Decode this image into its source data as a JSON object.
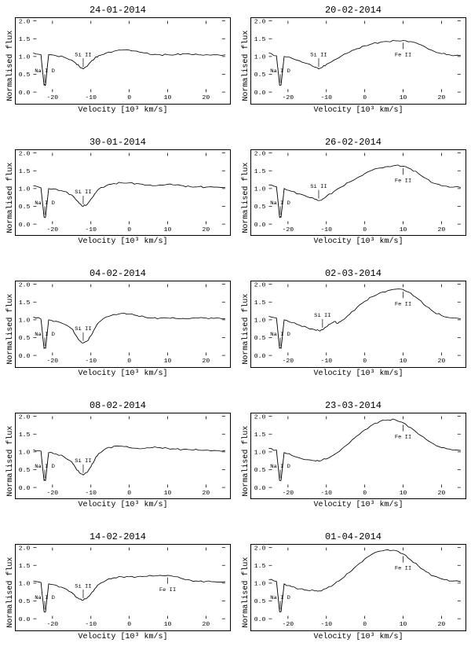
{
  "figure": {
    "grid_rows": 5,
    "grid_cols": 2,
    "background_color": "#ffffff",
    "line_color": "#000000",
    "text_color": "#000000",
    "title_fontsize": 12,
    "label_fontsize": 10,
    "ylabel": "Normalised flux",
    "xlabel": "Velocity [10³ km/s]",
    "xlim": [
      -25,
      25
    ],
    "ylim": [
      0.0,
      2.0
    ],
    "xticks": [
      -20,
      -10,
      0,
      10,
      20
    ],
    "yticks": [
      0.0,
      0.5,
      1.0,
      1.5,
      2.0
    ],
    "marker_labels": {
      "na": "Na I D",
      "si": "Si II",
      "fe": "Fe II"
    },
    "panels": [
      {
        "title": "24-01-2014",
        "na_x": -22,
        "si_x": -12,
        "fe_x": null,
        "spectrum": [
          [
            -25,
            1.1
          ],
          [
            -23,
            1.05
          ],
          [
            -22.2,
            0.2
          ],
          [
            -21.8,
            0.2
          ],
          [
            -21,
            1.05
          ],
          [
            -19,
            1.02
          ],
          [
            -17,
            0.98
          ],
          [
            -15,
            0.9
          ],
          [
            -14,
            0.82
          ],
          [
            -13,
            0.72
          ],
          [
            -12,
            0.65
          ],
          [
            -11,
            0.72
          ],
          [
            -10,
            0.85
          ],
          [
            -9,
            0.95
          ],
          [
            -8,
            1.02
          ],
          [
            -6,
            1.1
          ],
          [
            -4,
            1.15
          ],
          [
            -2,
            1.18
          ],
          [
            0,
            1.18
          ],
          [
            2,
            1.15
          ],
          [
            4,
            1.1
          ],
          [
            6,
            1.05
          ],
          [
            8,
            1.05
          ],
          [
            10,
            1.05
          ],
          [
            12,
            1.05
          ],
          [
            14,
            1.08
          ],
          [
            16,
            1.06
          ],
          [
            18,
            1.05
          ],
          [
            20,
            1.05
          ],
          [
            22,
            1.05
          ],
          [
            25,
            1.05
          ]
        ]
      },
      {
        "title": "20-02-2014",
        "na_x": -22,
        "si_x": -12,
        "fe_x": 10,
        "spectrum": [
          [
            -25,
            1.1
          ],
          [
            -23,
            1.02
          ],
          [
            -22.2,
            0.2
          ],
          [
            -21.8,
            0.2
          ],
          [
            -21,
            1.0
          ],
          [
            -19,
            0.95
          ],
          [
            -17,
            0.88
          ],
          [
            -15,
            0.8
          ],
          [
            -13,
            0.7
          ],
          [
            -12,
            0.65
          ],
          [
            -11,
            0.7
          ],
          [
            -10,
            0.78
          ],
          [
            -8,
            0.9
          ],
          [
            -6,
            1.02
          ],
          [
            -4,
            1.12
          ],
          [
            -2,
            1.22
          ],
          [
            0,
            1.3
          ],
          [
            2,
            1.36
          ],
          [
            4,
            1.4
          ],
          [
            6,
            1.42
          ],
          [
            8,
            1.44
          ],
          [
            10,
            1.45
          ],
          [
            12,
            1.42
          ],
          [
            14,
            1.35
          ],
          [
            16,
            1.25
          ],
          [
            18,
            1.15
          ],
          [
            20,
            1.08
          ],
          [
            22,
            1.05
          ],
          [
            25,
            1.03
          ]
        ]
      },
      {
        "title": "30-01-2014",
        "na_x": -22,
        "si_x": -12,
        "fe_x": null,
        "spectrum": [
          [
            -25,
            1.08
          ],
          [
            -23,
            1.02
          ],
          [
            -22.2,
            0.2
          ],
          [
            -21.8,
            0.2
          ],
          [
            -21,
            1.0
          ],
          [
            -19,
            0.98
          ],
          [
            -17,
            0.92
          ],
          [
            -15,
            0.82
          ],
          [
            -14,
            0.7
          ],
          [
            -13,
            0.58
          ],
          [
            -12,
            0.5
          ],
          [
            -11,
            0.55
          ],
          [
            -10,
            0.7
          ],
          [
            -9,
            0.85
          ],
          [
            -8,
            0.98
          ],
          [
            -6,
            1.08
          ],
          [
            -4,
            1.14
          ],
          [
            -2,
            1.16
          ],
          [
            0,
            1.16
          ],
          [
            2,
            1.14
          ],
          [
            4,
            1.1
          ],
          [
            6,
            1.08
          ],
          [
            8,
            1.1
          ],
          [
            10,
            1.12
          ],
          [
            12,
            1.1
          ],
          [
            14,
            1.08
          ],
          [
            16,
            1.05
          ],
          [
            18,
            1.05
          ],
          [
            20,
            1.04
          ],
          [
            22,
            1.04
          ],
          [
            25,
            1.03
          ]
        ]
      },
      {
        "title": "26-02-2014",
        "na_x": -22,
        "si_x": -12,
        "fe_x": 10,
        "spectrum": [
          [
            -25,
            1.1
          ],
          [
            -23,
            1.05
          ],
          [
            -22.2,
            0.2
          ],
          [
            -21.8,
            0.2
          ],
          [
            -21,
            1.0
          ],
          [
            -19,
            0.92
          ],
          [
            -17,
            0.85
          ],
          [
            -15,
            0.77
          ],
          [
            -13,
            0.7
          ],
          [
            -12,
            0.66
          ],
          [
            -11,
            0.7
          ],
          [
            -10,
            0.78
          ],
          [
            -8,
            0.92
          ],
          [
            -6,
            1.05
          ],
          [
            -4,
            1.18
          ],
          [
            -2,
            1.3
          ],
          [
            0,
            1.42
          ],
          [
            2,
            1.52
          ],
          [
            4,
            1.58
          ],
          [
            6,
            1.62
          ],
          [
            8,
            1.65
          ],
          [
            10,
            1.63
          ],
          [
            12,
            1.55
          ],
          [
            14,
            1.42
          ],
          [
            16,
            1.28
          ],
          [
            18,
            1.15
          ],
          [
            20,
            1.08
          ],
          [
            22,
            1.04
          ],
          [
            25,
            1.03
          ]
        ]
      },
      {
        "title": "04-02-2014",
        "na_x": -22,
        "si_x": -12,
        "fe_x": null,
        "spectrum": [
          [
            -25,
            1.08
          ],
          [
            -23,
            1.02
          ],
          [
            -22.2,
            0.2
          ],
          [
            -21.8,
            0.2
          ],
          [
            -21,
            1.0
          ],
          [
            -19,
            0.96
          ],
          [
            -17,
            0.88
          ],
          [
            -15,
            0.75
          ],
          [
            -14,
            0.58
          ],
          [
            -13,
            0.42
          ],
          [
            -12,
            0.35
          ],
          [
            -11,
            0.4
          ],
          [
            -10,
            0.55
          ],
          [
            -9,
            0.75
          ],
          [
            -8,
            0.92
          ],
          [
            -6,
            1.08
          ],
          [
            -4,
            1.15
          ],
          [
            -2,
            1.18
          ],
          [
            0,
            1.16
          ],
          [
            2,
            1.12
          ],
          [
            4,
            1.08
          ],
          [
            6,
            1.05
          ],
          [
            8,
            1.05
          ],
          [
            10,
            1.05
          ],
          [
            12,
            1.04
          ],
          [
            14,
            1.04
          ],
          [
            16,
            1.04
          ],
          [
            18,
            1.05
          ],
          [
            20,
            1.05
          ],
          [
            22,
            1.04
          ],
          [
            25,
            1.03
          ]
        ]
      },
      {
        "title": "02-03-2014",
        "na_x": -22,
        "si_x": -11,
        "fe_x": 10,
        "spectrum": [
          [
            -25,
            1.1
          ],
          [
            -23,
            1.05
          ],
          [
            -22.2,
            0.2
          ],
          [
            -21.8,
            0.2
          ],
          [
            -21,
            1.0
          ],
          [
            -19,
            0.92
          ],
          [
            -17,
            0.85
          ],
          [
            -15,
            0.78
          ],
          [
            -13,
            0.72
          ],
          [
            -12,
            0.7
          ],
          [
            -11,
            0.72
          ],
          [
            -10,
            0.8
          ],
          [
            -9,
            0.88
          ],
          [
            -8,
            0.95
          ],
          [
            -7,
            0.9
          ],
          [
            -6,
            0.98
          ],
          [
            -4,
            1.15
          ],
          [
            -2,
            1.35
          ],
          [
            0,
            1.52
          ],
          [
            2,
            1.65
          ],
          [
            4,
            1.76
          ],
          [
            6,
            1.82
          ],
          [
            8,
            1.86
          ],
          [
            10,
            1.85
          ],
          [
            12,
            1.75
          ],
          [
            14,
            1.58
          ],
          [
            16,
            1.38
          ],
          [
            18,
            1.22
          ],
          [
            20,
            1.12
          ],
          [
            22,
            1.06
          ],
          [
            25,
            1.03
          ]
        ]
      },
      {
        "title": "08-02-2014",
        "na_x": -22,
        "si_x": -12,
        "fe_x": null,
        "spectrum": [
          [
            -25,
            1.06
          ],
          [
            -23,
            1.02
          ],
          [
            -22.2,
            0.2
          ],
          [
            -21.8,
            0.2
          ],
          [
            -21,
            0.98
          ],
          [
            -19,
            0.94
          ],
          [
            -17,
            0.86
          ],
          [
            -15,
            0.72
          ],
          [
            -14,
            0.56
          ],
          [
            -13,
            0.42
          ],
          [
            -12,
            0.35
          ],
          [
            -11,
            0.42
          ],
          [
            -10,
            0.58
          ],
          [
            -9,
            0.78
          ],
          [
            -8,
            0.95
          ],
          [
            -6,
            1.1
          ],
          [
            -4,
            1.16
          ],
          [
            -2,
            1.16
          ],
          [
            0,
            1.12
          ],
          [
            2,
            1.1
          ],
          [
            4,
            1.1
          ],
          [
            6,
            1.12
          ],
          [
            8,
            1.12
          ],
          [
            10,
            1.1
          ],
          [
            12,
            1.08
          ],
          [
            14,
            1.07
          ],
          [
            16,
            1.06
          ],
          [
            18,
            1.05
          ],
          [
            20,
            1.05
          ],
          [
            22,
            1.04
          ],
          [
            25,
            1.04
          ]
        ]
      },
      {
        "title": "23-03-2014",
        "na_x": -22,
        "si_x": null,
        "fe_x": 10,
        "spectrum": [
          [
            -25,
            1.1
          ],
          [
            -23,
            1.05
          ],
          [
            -22.2,
            0.2
          ],
          [
            -21.8,
            0.2
          ],
          [
            -21,
            0.98
          ],
          [
            -19,
            0.9
          ],
          [
            -17,
            0.83
          ],
          [
            -15,
            0.78
          ],
          [
            -13,
            0.75
          ],
          [
            -12,
            0.74
          ],
          [
            -10,
            0.8
          ],
          [
            -8,
            0.92
          ],
          [
            -6,
            1.08
          ],
          [
            -4,
            1.25
          ],
          [
            -2,
            1.45
          ],
          [
            0,
            1.62
          ],
          [
            2,
            1.76
          ],
          [
            4,
            1.86
          ],
          [
            6,
            1.9
          ],
          [
            8,
            1.9
          ],
          [
            10,
            1.82
          ],
          [
            12,
            1.68
          ],
          [
            14,
            1.5
          ],
          [
            16,
            1.35
          ],
          [
            18,
            1.22
          ],
          [
            20,
            1.12
          ],
          [
            22,
            1.08
          ],
          [
            25,
            1.04
          ]
        ]
      },
      {
        "title": "14-02-2014",
        "na_x": -22,
        "si_x": -12,
        "fe_x": 10,
        "spectrum": [
          [
            -25,
            1.06
          ],
          [
            -23,
            1.02
          ],
          [
            -22.2,
            0.2
          ],
          [
            -21.8,
            0.2
          ],
          [
            -21,
            0.98
          ],
          [
            -19,
            0.94
          ],
          [
            -17,
            0.86
          ],
          [
            -15,
            0.74
          ],
          [
            -14,
            0.62
          ],
          [
            -13,
            0.55
          ],
          [
            -12,
            0.52
          ],
          [
            -11,
            0.58
          ],
          [
            -10,
            0.7
          ],
          [
            -9,
            0.84
          ],
          [
            -8,
            0.96
          ],
          [
            -6,
            1.08
          ],
          [
            -4,
            1.15
          ],
          [
            -2,
            1.18
          ],
          [
            0,
            1.18
          ],
          [
            2,
            1.18
          ],
          [
            4,
            1.19
          ],
          [
            6,
            1.2
          ],
          [
            8,
            1.22
          ],
          [
            10,
            1.22
          ],
          [
            12,
            1.18
          ],
          [
            14,
            1.12
          ],
          [
            16,
            1.08
          ],
          [
            18,
            1.05
          ],
          [
            20,
            1.05
          ],
          [
            22,
            1.04
          ],
          [
            25,
            1.04
          ]
        ]
      },
      {
        "title": "01-04-2014",
        "na_x": -22,
        "si_x": null,
        "fe_x": 10,
        "spectrum": [
          [
            -25,
            1.1
          ],
          [
            -23,
            1.05
          ],
          [
            -22.2,
            0.2
          ],
          [
            -21.8,
            0.2
          ],
          [
            -21,
            0.98
          ],
          [
            -19,
            0.9
          ],
          [
            -17,
            0.84
          ],
          [
            -15,
            0.8
          ],
          [
            -13,
            0.78
          ],
          [
            -12,
            0.78
          ],
          [
            -10,
            0.85
          ],
          [
            -8,
            0.97
          ],
          [
            -6,
            1.12
          ],
          [
            -4,
            1.3
          ],
          [
            -2,
            1.5
          ],
          [
            0,
            1.68
          ],
          [
            2,
            1.82
          ],
          [
            4,
            1.9
          ],
          [
            6,
            1.94
          ],
          [
            8,
            1.92
          ],
          [
            10,
            1.82
          ],
          [
            12,
            1.65
          ],
          [
            14,
            1.48
          ],
          [
            16,
            1.32
          ],
          [
            18,
            1.2
          ],
          [
            20,
            1.12
          ],
          [
            22,
            1.06
          ],
          [
            25,
            1.04
          ]
        ]
      }
    ]
  }
}
